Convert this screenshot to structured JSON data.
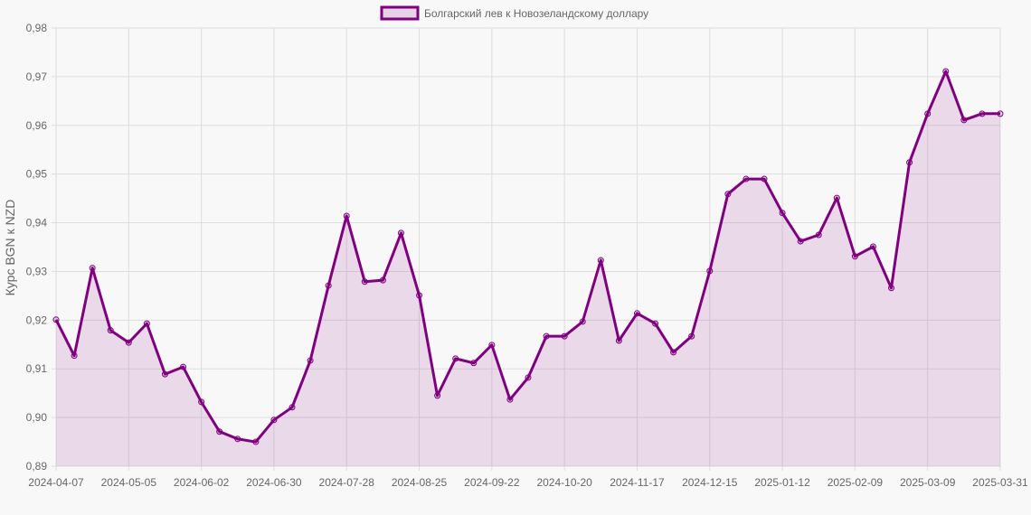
{
  "chart_data": {
    "type": "area",
    "title": "",
    "legend": [
      "Болгарский лев к Новозеландскому доллару"
    ],
    "legend_position": "top",
    "xlabel": "",
    "ylabel": "Курс BGN к NZD",
    "ylim": [
      0.89,
      0.98
    ],
    "yticks": [
      "0,98",
      "0,97",
      "0,96",
      "0,95",
      "0,94",
      "0,93",
      "0,92",
      "0,91",
      "0,90",
      "0,89"
    ],
    "xtick_labels": [
      "2024-04-07",
      "2024-05-05",
      "2024-06-02",
      "2024-06-30",
      "2024-07-28",
      "2024-08-25",
      "2024-09-22",
      "2024-10-20",
      "2024-11-17",
      "2024-12-15",
      "2025-01-12",
      "2025-02-09",
      "2025-03-09",
      "2025-03-31"
    ],
    "grid": true,
    "colors": {
      "line": "#800080",
      "fill": "rgba(128,0,128,0.12)",
      "grid": "#dddddd"
    },
    "series": [
      {
        "name": "Болгарский лев к Новозеландскому доллару",
        "values": [
          0.9201,
          0.9127,
          0.9307,
          0.9179,
          0.9154,
          0.9193,
          0.9089,
          0.9104,
          0.9032,
          0.8971,
          0.8956,
          0.895,
          0.8995,
          0.9021,
          0.9117,
          0.9271,
          0.9414,
          0.9279,
          0.9282,
          0.9379,
          0.9251,
          0.9045,
          0.9121,
          0.9112,
          0.9149,
          0.9037,
          0.9082,
          0.9167,
          0.9167,
          0.9197,
          0.9323,
          0.9158,
          0.9214,
          0.9193,
          0.9134,
          0.9167,
          0.9301,
          0.9459,
          0.949,
          0.949,
          0.942,
          0.9362,
          0.9375,
          0.9451,
          0.9331,
          0.9351,
          0.9266,
          0.9524,
          0.9624,
          0.9711,
          0.9611,
          0.9624,
          0.9624
        ]
      }
    ]
  }
}
